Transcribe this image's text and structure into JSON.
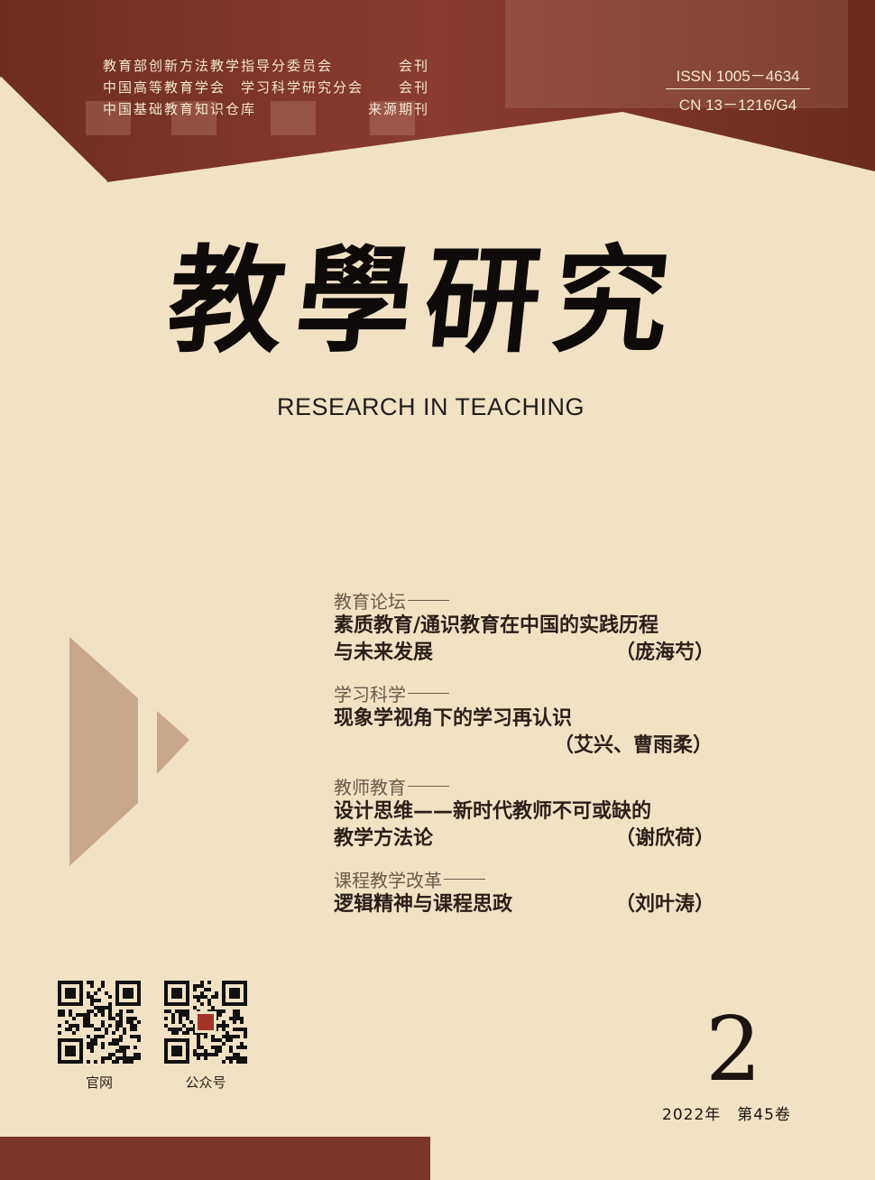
{
  "affiliations": [
    {
      "org": "教育部创新方法教学指导分委员会",
      "type": "会刊"
    },
    {
      "org": "中国高等教育学会　学习科学研究分会",
      "type": "会刊"
    },
    {
      "org": "中国基础教育知识仓库",
      "type": "来源期刊"
    }
  ],
  "issn": "ISSN 1005－4634",
  "cn": "CN 13－1216/G4",
  "title_cn": "教學研究",
  "title_en": "RESEARCH IN TEACHING",
  "toc": [
    {
      "column": "教育论坛",
      "title_lines": [
        "素质教育/通识教育在中国的实践历程",
        "与未来发展"
      ],
      "author": "（庞海芍）",
      "author_inline": true
    },
    {
      "column": "学习科学",
      "title_lines": [
        "现象学视角下的学习再认识"
      ],
      "author": "（艾兴、曹雨柔）",
      "author_inline": false
    },
    {
      "column": "教师教育",
      "title_lines": [
        "设计思维——新时代教师不可或缺的",
        "教学方法论"
      ],
      "author": "（谢欣荷）",
      "author_inline": true
    },
    {
      "column": "课程教学改革",
      "title_lines": [
        "逻辑精神与课程思政"
      ],
      "author": "（刘叶涛）",
      "author_inline": true
    }
  ],
  "qr_codes": [
    {
      "caption": "官网"
    },
    {
      "caption": "公众号"
    }
  ],
  "issue_number": "2",
  "issue_meta": "2022年　第45卷",
  "colors": {
    "background": "#f1e2c4",
    "brand_red": "#7d3527",
    "triangle_tan": "#c9a88a"
  }
}
